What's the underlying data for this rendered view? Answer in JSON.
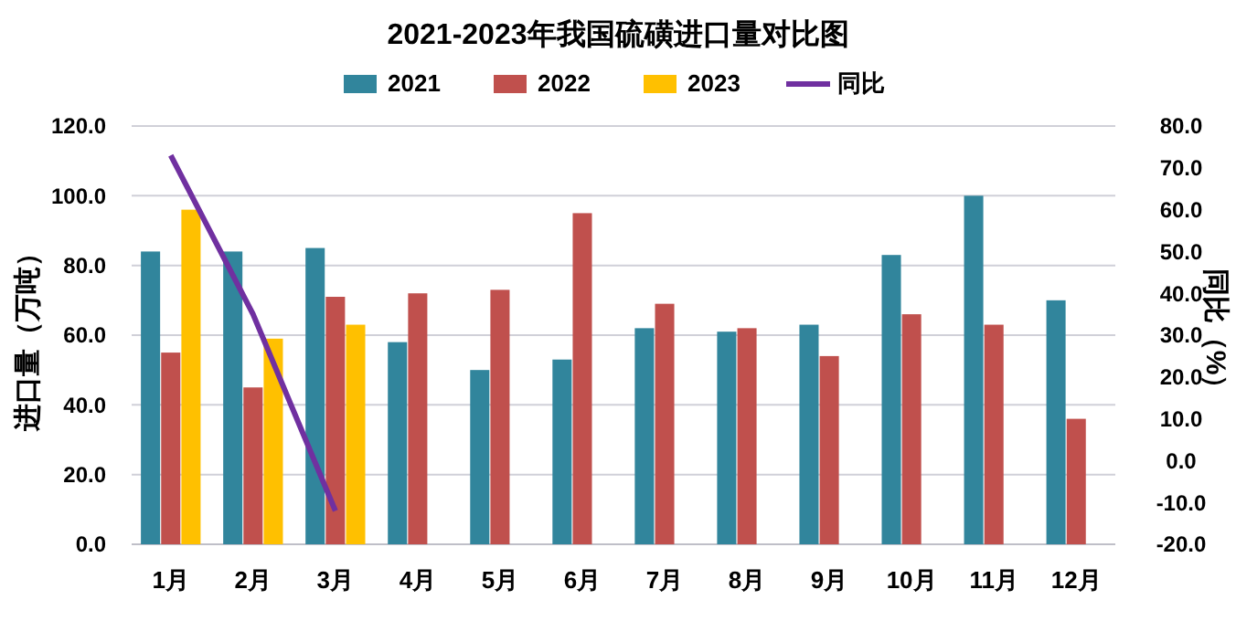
{
  "chart_data": {
    "type": "bar",
    "title": "2021-2023年我国硫磺进口量对比图",
    "ylabel": "进口量（万吨）",
    "y2label": "同比（%）",
    "categories": [
      "1月",
      "2月",
      "3月",
      "4月",
      "5月",
      "6月",
      "7月",
      "8月",
      "9月",
      "10月",
      "11月",
      "12月"
    ],
    "series": [
      {
        "name": "2021",
        "color": "#31859c",
        "values": [
          84,
          84,
          85,
          58,
          50,
          53,
          62,
          61,
          63,
          83,
          100,
          70
        ]
      },
      {
        "name": "2022",
        "color": "#c0504d",
        "values": [
          55,
          45,
          71,
          72,
          73,
          95,
          69,
          62,
          54,
          66,
          63,
          36
        ]
      },
      {
        "name": "2023",
        "color": "#ffc000",
        "values": [
          96,
          59,
          63,
          null,
          null,
          null,
          null,
          null,
          null,
          null,
          null,
          null
        ]
      },
      {
        "name": "同比",
        "type": "line",
        "axis": "y2",
        "color": "#7030a0",
        "values": [
          73,
          35,
          -12,
          null,
          null,
          null,
          null,
          null,
          null,
          null,
          null,
          null
        ]
      }
    ],
    "ylim": [
      0,
      120
    ],
    "yticks": [
      {
        "value": 0,
        "label": "0.0"
      },
      {
        "value": 20,
        "label": "20.0"
      },
      {
        "value": 40,
        "label": "40.0"
      },
      {
        "value": 60,
        "label": "60.0"
      },
      {
        "value": 80,
        "label": "80.0"
      },
      {
        "value": 100,
        "label": "100.0"
      },
      {
        "value": 120,
        "label": "120.0"
      }
    ],
    "y2lim": [
      -20,
      80
    ],
    "y2ticks": [
      {
        "value": -20,
        "label": "-20.0"
      },
      {
        "value": -10,
        "label": "-10.0"
      },
      {
        "value": 0,
        "label": "0.0"
      },
      {
        "value": 10,
        "label": "10.0"
      },
      {
        "value": 20,
        "label": "20.0"
      },
      {
        "value": 30,
        "label": "30.0"
      },
      {
        "value": 40,
        "label": "40.0"
      },
      {
        "value": 50,
        "label": "50.0"
      },
      {
        "value": 60,
        "label": "60.0"
      },
      {
        "value": 70,
        "label": "70.0"
      },
      {
        "value": 80,
        "label": "80.0"
      }
    ],
    "grid": "y",
    "legend": "top",
    "marker": "none"
  }
}
